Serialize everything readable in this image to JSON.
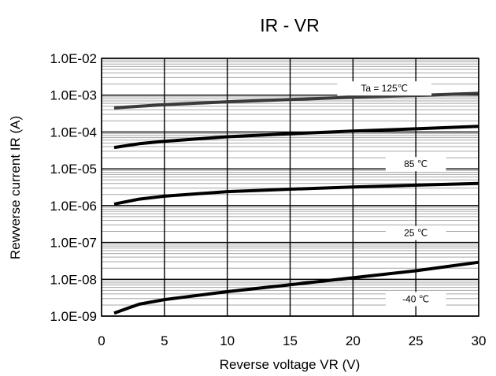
{
  "chart_data": {
    "type": "line",
    "title": "IR - VR",
    "xlabel": "Reverse voltage VR (V)",
    "ylabel": "Rewverse current IR (A)",
    "x_scale": "linear",
    "y_scale": "log",
    "xlim": [
      0,
      30
    ],
    "ylim": [
      1e-09,
      0.01
    ],
    "x_ticks": [
      0,
      5,
      10,
      15,
      20,
      25,
      30
    ],
    "x_tick_labels": [
      "0",
      "5",
      "10",
      "15",
      "20",
      "25",
      "30"
    ],
    "y_ticks": [
      1e-09,
      1e-08,
      1e-07,
      1e-06,
      1e-05,
      0.0001,
      0.001,
      0.01
    ],
    "y_tick_labels": [
      "1.0E-09",
      "1.0E-08",
      "1.0E-07",
      "1.0E-06",
      "1.0E-05",
      "1.0E-04",
      "1.0E-03",
      "1.0E-02"
    ],
    "grid": true,
    "series": [
      {
        "name": "Ta = 125℃",
        "color": "#3a3a3a",
        "x": [
          1,
          5,
          10,
          15,
          20,
          25,
          30
        ],
        "y": [
          0.00045,
          0.00055,
          0.00066,
          0.00076,
          0.00088,
          0.00098,
          0.00112
        ]
      },
      {
        "name": "85 ℃",
        "color": "#000000",
        "x": [
          1,
          3,
          5,
          10,
          15,
          20,
          25,
          30
        ],
        "y": [
          3.8e-05,
          4.8e-05,
          5.6e-05,
          7.4e-05,
          9e-05,
          0.000106,
          0.000122,
          0.000143
        ]
      },
      {
        "name": "25 ℃",
        "color": "#000000",
        "x": [
          1,
          3,
          5,
          10,
          15,
          20,
          25,
          30
        ],
        "y": [
          1.1e-06,
          1.5e-06,
          1.8e-06,
          2.4e-06,
          2.8e-06,
          3.2e-06,
          3.6e-06,
          4e-06
        ]
      },
      {
        "name": "-40 ℃",
        "color": "#000000",
        "x": [
          1,
          2,
          3,
          5,
          10,
          15,
          20,
          25,
          30
        ],
        "y": [
          1.2e-09,
          1.6e-09,
          2.1e-09,
          2.8e-09,
          4.6e-09,
          7.1e-09,
          1.1e-08,
          1.7e-08,
          2.9e-08
        ]
      }
    ],
    "annotations": [
      {
        "text": "Ta = 125℃",
        "x": 22.5,
        "y": 0.00152,
        "w_frac": 0.25
      },
      {
        "text": "85 ℃",
        "x": 25,
        "y": 1.34e-05,
        "w_frac": 0.16
      },
      {
        "text": "25 ℃",
        "x": 25,
        "y": 1.8e-07,
        "w_frac": 0.16
      },
      {
        "text": "-40 ℃",
        "x": 25,
        "y": 2.9e-09,
        "w_frac": 0.16
      }
    ]
  }
}
